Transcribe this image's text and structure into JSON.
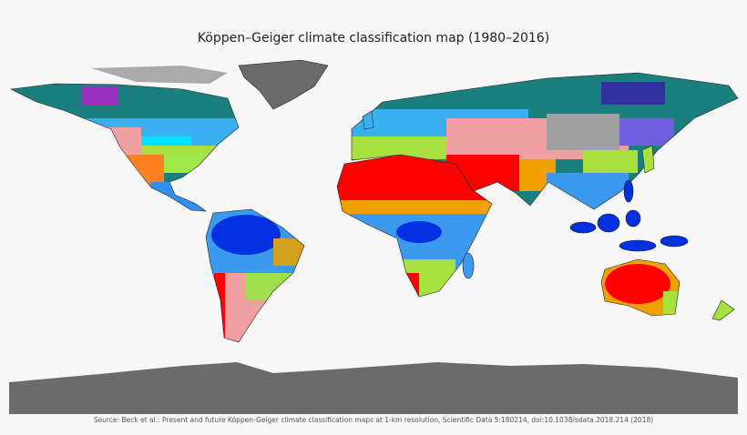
{
  "title": "Köppen–Geiger climate classification map (1980–2016)",
  "source": "Source: Beck et al.: Present and future Köppen-Geiger climate classification maps at 1-km resolution, Scientific Data 5:180214, doi:10.1038/sdata.2018.214 (2018)"
}
